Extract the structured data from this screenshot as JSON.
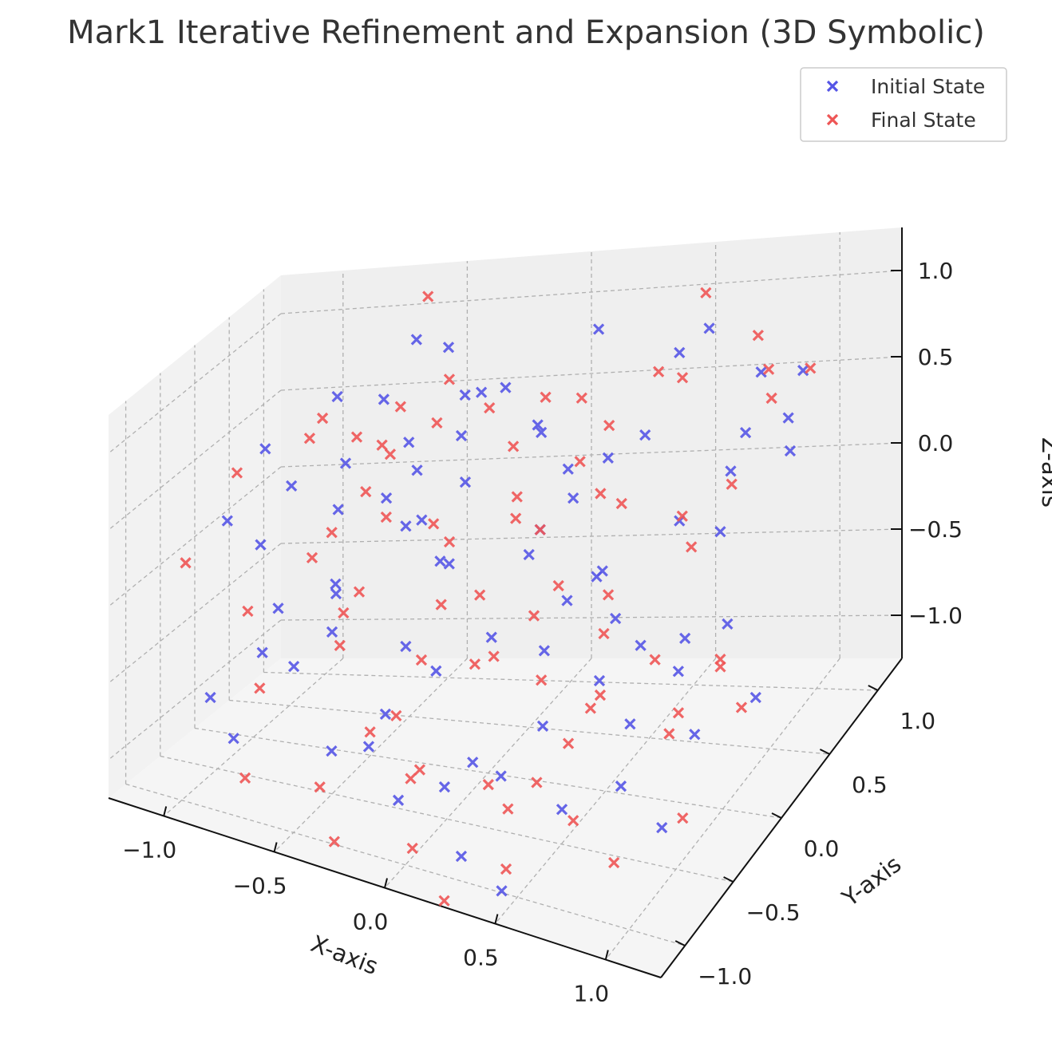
{
  "chart_data": {
    "type": "scatter",
    "title": "Mark1 Iterative Refinement and Expansion (3D Symbolic)",
    "xlabel": "X-axis",
    "ylabel": "Y-axis",
    "zlabel": "Z-axis",
    "xlim": [
      -1.25,
      1.25
    ],
    "ylim": [
      -1.25,
      1.25
    ],
    "zlim": [
      -1.25,
      1.25
    ],
    "xticks": [
      -1.0,
      -0.5,
      0.0,
      0.5,
      1.0
    ],
    "yticks": [
      -1.0,
      -0.5,
      0.0,
      0.5,
      1.0
    ],
    "zticks": [
      -1.0,
      -0.5,
      0.0,
      0.5,
      1.0
    ],
    "xtick_labels": [
      "−1.0",
      "−0.5",
      "0.0",
      "0.5",
      "1.0"
    ],
    "ytick_labels": [
      "−1.0",
      "−0.5",
      "0.0",
      "0.5",
      "1.0"
    ],
    "ztick_labels": [
      "−1.0",
      "−0.5",
      "0.0",
      "0.5",
      "1.0"
    ],
    "grid": true,
    "legend_position": "top-right",
    "marker": "x",
    "series": [
      {
        "name": "Initial State",
        "color": "#5555e6",
        "points": [
          [
            -0.55,
            0.75,
            1.0
          ],
          [
            0.6,
            0.9,
            0.95
          ],
          [
            -0.45,
            0.85,
            0.9
          ],
          [
            0.7,
            0.3,
            1.2
          ],
          [
            0.2,
            0.75,
            1.05
          ],
          [
            -0.8,
            0.5,
            0.75
          ],
          [
            -0.7,
            0.8,
            0.6
          ],
          [
            0.3,
            -0.2,
            1.0
          ],
          [
            -0.2,
            0.5,
            0.8
          ],
          [
            0.9,
            0.5,
            0.6
          ],
          [
            1.1,
            0.6,
            0.9
          ],
          [
            0.85,
            0.8,
            0.75
          ],
          [
            -1.1,
            0.5,
            0.4
          ],
          [
            -0.9,
            0.2,
            0.3
          ],
          [
            -0.75,
            0.45,
            0.35
          ],
          [
            -0.3,
            0.55,
            0.5
          ],
          [
            -0.55,
            0.65,
            0.4
          ],
          [
            0.0,
            0.6,
            0.55
          ],
          [
            -0.2,
            0.3,
            0.35
          ],
          [
            -0.5,
            0.6,
            0.25
          ],
          [
            -0.35,
            0.2,
            0.15
          ],
          [
            0.4,
            0.3,
            0.55
          ],
          [
            0.5,
            -0.1,
            0.1
          ],
          [
            0.8,
            0.6,
            0.3
          ],
          [
            0.7,
            0.3,
            0.2
          ],
          [
            1.0,
            0.7,
            0.55
          ],
          [
            0.95,
            0.1,
            0.3
          ],
          [
            -1.2,
            0.3,
            0.0
          ],
          [
            -1.0,
            0.1,
            -0.05
          ],
          [
            -0.8,
            -0.3,
            -0.25
          ],
          [
            -0.55,
            -0.3,
            -0.1
          ],
          [
            -0.45,
            0.3,
            0.05
          ],
          [
            -0.2,
            0.1,
            -0.05
          ],
          [
            0.15,
            0.2,
            0.15
          ],
          [
            0.45,
            0.1,
            0.0
          ],
          [
            0.6,
            -0.15,
            -0.1
          ],
          [
            0.8,
            0.1,
            -0.35
          ],
          [
            1.0,
            0.05,
            -0.2
          ],
          [
            0.85,
            -0.1,
            -0.4
          ],
          [
            -0.9,
            -0.2,
            -0.6
          ],
          [
            -0.7,
            -0.4,
            -0.55
          ],
          [
            -0.3,
            -0.15,
            -0.45
          ],
          [
            -0.1,
            -0.35,
            -0.45
          ],
          [
            0.05,
            -0.1,
            -0.35
          ],
          [
            0.35,
            -0.3,
            -0.25
          ],
          [
            0.55,
            -0.2,
            -0.45
          ],
          [
            0.8,
            -0.5,
            -0.45
          ],
          [
            1.0,
            -0.3,
            -0.6
          ],
          [
            1.1,
            0.1,
            -0.65
          ],
          [
            -1.0,
            -0.6,
            -0.75
          ],
          [
            -0.85,
            -0.75,
            -0.9
          ],
          [
            -0.4,
            -0.8,
            -0.8
          ],
          [
            -0.2,
            -0.9,
            -0.65
          ],
          [
            0.1,
            -0.8,
            -0.85
          ],
          [
            0.35,
            -0.8,
            -0.7
          ],
          [
            0.6,
            -0.75,
            -0.85
          ],
          [
            0.8,
            -0.6,
            -0.75
          ],
          [
            1.0,
            -0.65,
            -0.9
          ],
          [
            -0.1,
            -0.3,
            0.2
          ],
          [
            0.25,
            0.25,
            0.5
          ],
          [
            -0.65,
            0.0,
            -0.2
          ],
          [
            -0.45,
            0.05,
            0.35
          ],
          [
            0.2,
            0.45,
            0.2
          ],
          [
            0.5,
            0.45,
            0.6
          ],
          [
            -0.15,
            0.65,
            0.75
          ],
          [
            0.05,
            0.35,
            -0.1
          ],
          [
            -0.25,
            -0.55,
            -0.65
          ],
          [
            -0.05,
            -0.95,
            -0.9
          ],
          [
            0.25,
            -1.0,
            -1.1
          ],
          [
            0.45,
            -1.05,
            -1.2
          ],
          [
            -0.6,
            -0.2,
            -0.4
          ],
          [
            0.65,
            0.0,
            -0.35
          ],
          [
            0.3,
            0.1,
            -0.2
          ],
          [
            -0.35,
            0.75,
            0.65
          ],
          [
            0.95,
            0.85,
            0.25
          ],
          [
            -0.75,
            0.35,
            0.1
          ],
          [
            0.4,
            -0.45,
            -0.6
          ],
          [
            0.15,
            -0.6,
            -0.8
          ]
        ]
      },
      {
        "name": "Final State",
        "color": "#ee5555",
        "points": [
          [
            -0.55,
            0.9,
            1.2
          ],
          [
            0.55,
            1.0,
            1.1
          ],
          [
            0.65,
            0.2,
            1.15
          ],
          [
            0.2,
            0.55,
            0.75
          ],
          [
            -0.8,
            0.3,
            0.7
          ],
          [
            -0.55,
            0.3,
            0.55
          ],
          [
            0.6,
            0.6,
            0.85
          ],
          [
            0.95,
            0.65,
            0.7
          ],
          [
            1.15,
            0.55,
            0.95
          ],
          [
            0.9,
            0.75,
            0.8
          ],
          [
            -1.1,
            0.1,
            0.4
          ],
          [
            -0.6,
            0.7,
            0.6
          ],
          [
            -0.2,
            0.6,
            0.65
          ],
          [
            0.05,
            0.55,
            0.75
          ],
          [
            0.3,
            0.25,
            0.55
          ],
          [
            -0.75,
            0.6,
            0.45
          ],
          [
            -0.45,
            0.7,
            0.5
          ],
          [
            0.0,
            0.35,
            0.25
          ],
          [
            0.35,
            0.45,
            0.65
          ],
          [
            -0.65,
            0.4,
            0.2
          ],
          [
            -0.35,
            0.35,
            0.05
          ],
          [
            0.15,
            0.2,
            0.15
          ],
          [
            0.55,
            -0.1,
            0.0
          ],
          [
            0.75,
            0.2,
            0.3
          ],
          [
            0.9,
            0.35,
            0.4
          ],
          [
            -1.2,
            -0.3,
            -0.05
          ],
          [
            -0.9,
            -0.4,
            -0.25
          ],
          [
            -0.75,
            0.0,
            -0.05
          ],
          [
            -0.5,
            -0.15,
            -0.15
          ],
          [
            -0.25,
            0.25,
            0.0
          ],
          [
            0.0,
            -0.1,
            -0.1
          ],
          [
            0.3,
            0.0,
            -0.05
          ],
          [
            0.55,
            -0.15,
            -0.2
          ],
          [
            0.75,
            -0.1,
            -0.35
          ],
          [
            0.95,
            0.1,
            -0.45
          ],
          [
            -0.8,
            -0.55,
            -0.65
          ],
          [
            -0.55,
            -0.25,
            -0.45
          ],
          [
            -0.25,
            -0.1,
            -0.55
          ],
          [
            0.05,
            -0.3,
            -0.4
          ],
          [
            0.3,
            -0.2,
            -0.5
          ],
          [
            0.55,
            -0.3,
            -0.55
          ],
          [
            0.85,
            -0.2,
            -0.7
          ],
          [
            1.1,
            -0.05,
            -0.6
          ],
          [
            -0.75,
            -0.9,
            -1.05
          ],
          [
            -0.3,
            -0.6,
            -0.75
          ],
          [
            -0.05,
            -0.8,
            -0.85
          ],
          [
            0.2,
            -0.55,
            -0.95
          ],
          [
            0.4,
            -0.85,
            -0.85
          ],
          [
            0.65,
            -0.75,
            -0.9
          ],
          [
            0.85,
            -0.8,
            -1.05
          ],
          [
            1.05,
            -0.55,
            -0.9
          ],
          [
            -0.45,
            0.1,
            0.6
          ],
          [
            -0.05,
            0.45,
            0.5
          ],
          [
            0.55,
            0.05,
            0.45
          ],
          [
            -0.65,
            -0.05,
            0.15
          ],
          [
            0.1,
            0.05,
            0.3
          ],
          [
            0.65,
            -0.45,
            -0.35
          ],
          [
            -0.15,
            -0.7,
            -0.55
          ],
          [
            0.05,
            -1.05,
            -1.1
          ],
          [
            0.25,
            -1.2,
            -1.25
          ],
          [
            -0.4,
            -0.95,
            -0.95
          ],
          [
            0.45,
            -0.65,
            -0.8
          ],
          [
            -0.9,
            0.45,
            0.5
          ],
          [
            0.8,
            0.9,
            0.9
          ],
          [
            -0.35,
            0.55,
            0.85
          ],
          [
            0.35,
            0.35,
            0.3
          ],
          [
            -0.2,
            0.0,
            -0.25
          ],
          [
            0.15,
            -0.35,
            -0.3
          ],
          [
            0.75,
            0.3,
            0.05
          ],
          [
            -0.6,
            -0.05,
            -0.35
          ],
          [
            0.25,
            -0.15,
            -0.15
          ],
          [
            1.05,
            -0.15,
            -0.3
          ],
          [
            -0.1,
            -0.55,
            -0.95
          ],
          [
            0.55,
            -0.55,
            -0.6
          ],
          [
            -0.5,
            0.2,
            0.15
          ],
          [
            0.45,
            -1.0,
            -1.1
          ],
          [
            0.95,
            -0.35,
            -0.45
          ],
          [
            -0.3,
            -1.05,
            -1.2
          ]
        ]
      }
    ]
  }
}
